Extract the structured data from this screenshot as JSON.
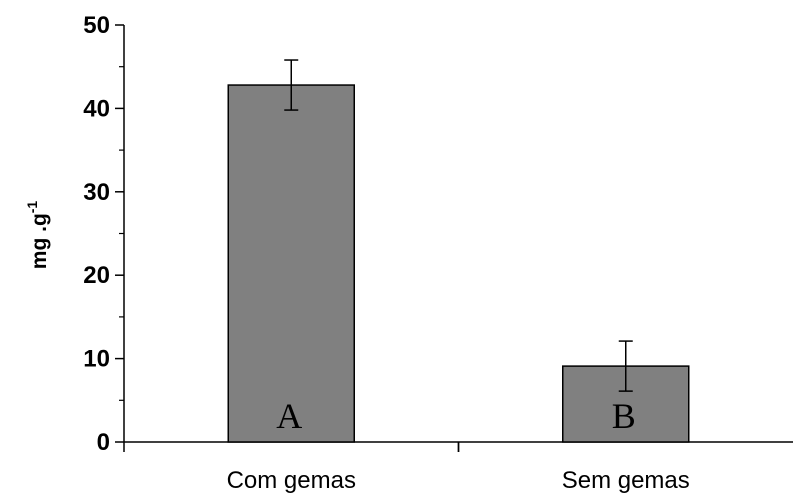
{
  "chart_data": {
    "type": "bar",
    "categories": [
      "Com gemas",
      "Sem gemas"
    ],
    "values": [
      42.8,
      9.1
    ],
    "errors": [
      3.0,
      3.0
    ],
    "bar_labels": [
      "A",
      "B"
    ],
    "ylabel_main": "mg .g",
    "ylabel_sup": "-1",
    "ylim": [
      0,
      50
    ],
    "yticks": [
      0,
      10,
      20,
      30,
      40,
      50
    ],
    "y_minor_step": 5,
    "bar_color": "#808080",
    "grid": false
  }
}
